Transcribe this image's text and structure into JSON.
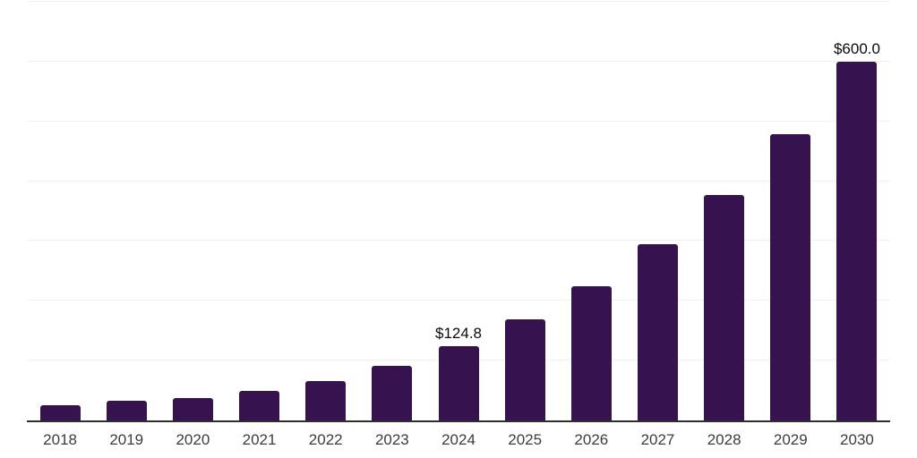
{
  "chart": {
    "background_color": "#ffffff",
    "bar_color": "#36124f",
    "axis_line_color": "#2e2e2e",
    "gridline_color": "#f0f0f0",
    "tick_label_color": "#3c3c3c",
    "data_label_color": "#0a0a0a"
  },
  "chart_data": {
    "type": "bar",
    "title": "",
    "xlabel": "",
    "ylabel": "",
    "categories": [
      "2018",
      "2019",
      "2020",
      "2021",
      "2022",
      "2023",
      "2024",
      "2025",
      "2026",
      "2027",
      "2028",
      "2029",
      "2030"
    ],
    "values": [
      25.5,
      33.5,
      37.5,
      49,
      66,
      91,
      124.8,
      169.5,
      224.5,
      294,
      377.5,
      478.5,
      600.0
    ],
    "data_labels": [
      {
        "category": "2024",
        "text": "$124.8"
      },
      {
        "category": "2030",
        "text": "$600.0"
      }
    ],
    "ylim": [
      0,
      700
    ],
    "grid_values": [
      100,
      200,
      300,
      400,
      500,
      600,
      700
    ],
    "grid": "horizontal",
    "y_axis_tick_labels": "none",
    "legend": "none"
  }
}
